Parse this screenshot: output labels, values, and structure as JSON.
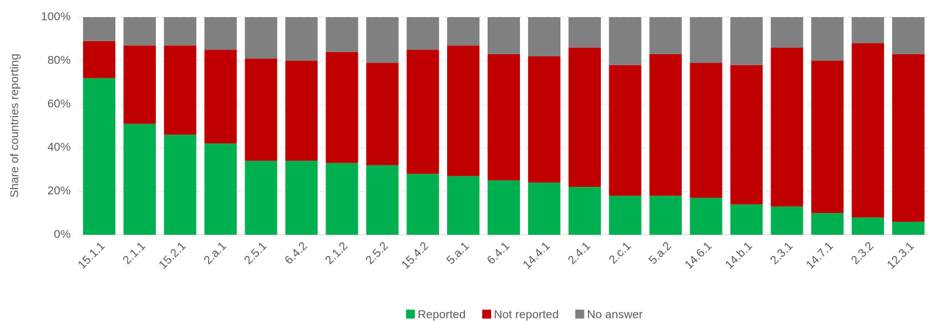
{
  "chart_data": {
    "type": "stacked_bar",
    "y_label": "Share of countries reporting",
    "categories": [
      "15.1.1",
      "2.1.1",
      "15.2.1",
      "2.a.1",
      "2.5.1",
      "6.4.2",
      "2.1.2",
      "2.5.2",
      "15.4.2",
      "5.a.1",
      "6.4.1",
      "14.4.1",
      "2.4.1",
      "2.c.1",
      "5.a.2",
      "14.6.1",
      "14.b.1",
      "2.3.1",
      "14.7.1",
      "2.3.2",
      "12.3.1"
    ],
    "series": [
      {
        "name": "Reported",
        "color": "#00b050",
        "values": [
          72,
          51,
          46,
          42,
          34,
          34,
          33,
          32,
          28,
          27,
          25,
          24,
          22,
          18,
          18,
          17,
          14,
          13,
          10,
          8,
          6
        ]
      },
      {
        "name": "Not reported",
        "color": "#c00000",
        "values": [
          17,
          36,
          41,
          43,
          47,
          46,
          51,
          47,
          57,
          60,
          58,
          58,
          64,
          60,
          65,
          62,
          64,
          73,
          70,
          80,
          77
        ]
      },
      {
        "name": "No answer",
        "color": "#808080",
        "values": [
          11,
          13,
          13,
          15,
          19,
          20,
          16,
          21,
          15,
          13,
          17,
          18,
          14,
          22,
          17,
          21,
          22,
          14,
          20,
          12,
          17
        ]
      }
    ],
    "ylim": [
      0,
      100
    ],
    "yticks": [
      {
        "value": 0,
        "label": "0%"
      },
      {
        "value": 20,
        "label": "20%"
      },
      {
        "value": 40,
        "label": "40%"
      },
      {
        "value": 60,
        "label": "60%"
      },
      {
        "value": 80,
        "label": "80%"
      },
      {
        "value": 100,
        "label": "100%"
      }
    ],
    "grid": true,
    "legend": "bottom"
  }
}
